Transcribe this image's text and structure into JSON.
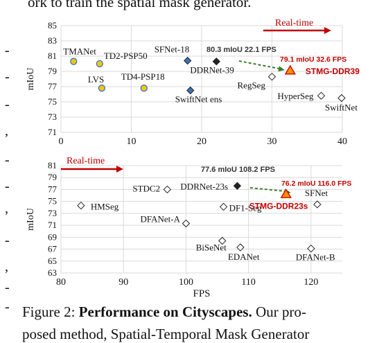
{
  "top_text": "ork to train the spatial mask generator.",
  "left_edge_chars": [
    "-",
    "-",
    "-",
    ",",
    "-",
    "-",
    ",",
    "-",
    ",",
    "-",
    "-"
  ],
  "caption": {
    "prefix": "Figure 2: ",
    "bold": "Performance on Cityscapes.",
    "rest": " Our pro-",
    "line2": "posed method, Spatial-Temporal Mask Generator"
  },
  "colors": {
    "yellow_marker": "#f5c518",
    "blue_marker": "#3a73b8",
    "black_marker": "#222222",
    "open_marker": "#ffffff",
    "ours_marker": "#ff8c00",
    "ours_text": "#c00000",
    "arrow_red": "#c00000",
    "arrow_green": "#3a7d2a",
    "grid": "#d9d9d9"
  },
  "chart_data": [
    {
      "type": "scatter",
      "xlabel": "",
      "ylabel": "mIoU",
      "xlim": [
        0,
        40
      ],
      "ylim": [
        71,
        85
      ],
      "xticks": [
        0,
        10,
        20,
        30,
        40
      ],
      "yticks": [
        71,
        73,
        75,
        77,
        79,
        81,
        83,
        85
      ],
      "grid": true,
      "banner": "Real-time",
      "points": [
        {
          "label": "TMANet",
          "x": 1.8,
          "y": 80.3,
          "marker": "circle",
          "fill": "yellow"
        },
        {
          "label": "TD2-PSP50",
          "x": 5.5,
          "y": 80.0,
          "marker": "circle",
          "fill": "yellow"
        },
        {
          "label": "LVS",
          "x": 5.8,
          "y": 76.8,
          "marker": "circle",
          "fill": "yellow"
        },
        {
          "label": "TD4-PSP18",
          "x": 11.8,
          "y": 76.8,
          "marker": "circle",
          "fill": "yellow"
        },
        {
          "label": "SFNet-18",
          "x": 18.0,
          "y": 80.4,
          "marker": "diamond",
          "fill": "blue"
        },
        {
          "label": "SwiftNet ens",
          "x": 18.4,
          "y": 76.5,
          "marker": "diamond",
          "fill": "blue"
        },
        {
          "label": "DDRNet-39",
          "x": 22.1,
          "y": 80.3,
          "marker": "diamond",
          "fill": "black"
        },
        {
          "label": "RegSeg",
          "x": 30.0,
          "y": 78.3,
          "marker": "diamond",
          "fill": "open"
        },
        {
          "label": "HyperSeg",
          "x": 37.0,
          "y": 75.8,
          "marker": "diamond",
          "fill": "open"
        },
        {
          "label": "SwiftNet",
          "x": 39.9,
          "y": 75.5,
          "marker": "diamond",
          "fill": "open"
        },
        {
          "label": "STMG-DDR39",
          "x": 32.6,
          "y": 79.1,
          "marker": "triangle",
          "fill": "ours"
        }
      ],
      "annotations": {
        "baseline": "80.3 mIoU 22.1 FPS",
        "ours": "79.1 mIoU 32.6 FPS"
      }
    },
    {
      "type": "scatter",
      "xlabel": "FPS",
      "ylabel": "mIoU",
      "xlim": [
        80,
        125
      ],
      "ylim": [
        63,
        81
      ],
      "xticks": [
        80,
        90,
        100,
        110,
        120
      ],
      "yticks": [
        63,
        65,
        67,
        69,
        71,
        73,
        75,
        77,
        79,
        81
      ],
      "grid": true,
      "banner": "Real-time",
      "points": [
        {
          "label": "HMSeg",
          "x": 83.2,
          "y": 74.3,
          "marker": "diamond",
          "fill": "open"
        },
        {
          "label": "STDC2",
          "x": 97.0,
          "y": 77.0,
          "marker": "diamond",
          "fill": "open"
        },
        {
          "label": "DFANet-A",
          "x": 100.0,
          "y": 71.3,
          "marker": "diamond",
          "fill": "open"
        },
        {
          "label": "DF1-Seg",
          "x": 106.0,
          "y": 74.1,
          "marker": "diamond",
          "fill": "open"
        },
        {
          "label": "BiSeNet",
          "x": 105.8,
          "y": 68.4,
          "marker": "diamond",
          "fill": "open"
        },
        {
          "label": "EDANet",
          "x": 108.7,
          "y": 67.3,
          "marker": "diamond",
          "fill": "open"
        },
        {
          "label": "SFNet",
          "x": 121.0,
          "y": 74.5,
          "marker": "diamond",
          "fill": "open"
        },
        {
          "label": "DFANet-B",
          "x": 120.0,
          "y": 67.1,
          "marker": "diamond",
          "fill": "open"
        },
        {
          "label": "DDRNet-23s",
          "x": 108.2,
          "y": 77.6,
          "marker": "diamond",
          "fill": "black"
        },
        {
          "label": "STMG-DDR23s",
          "x": 116.0,
          "y": 76.2,
          "marker": "triangle",
          "fill": "ours"
        }
      ],
      "annotations": {
        "baseline": "77.6 mIoU 108.2 FPS",
        "ours": "76.2 mIoU 116.0 FPS"
      }
    }
  ]
}
